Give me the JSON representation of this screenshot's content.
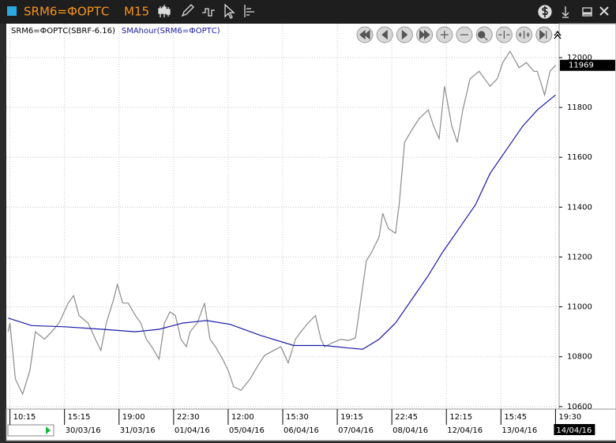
{
  "window": {
    "symbol": "SRM6=ФОРТС",
    "timeframe": "M15"
  },
  "chart_data": {
    "type": "line",
    "series": [
      {
        "name": "SRM6=ФОРТС(SBRF-6.16)",
        "color": "#8c8c8c",
        "x": [
          -1,
          0,
          3,
          7,
          11,
          14,
          19,
          23,
          27,
          32,
          35,
          38,
          43,
          47,
          50,
          53,
          57,
          59,
          62,
          65,
          69,
          72,
          75,
          78,
          82,
          85,
          88,
          91,
          94,
          97,
          99,
          103,
          107,
          110,
          113,
          117,
          120,
          123,
          127,
          132,
          136,
          140,
          145,
          149,
          153,
          157,
          160,
          164,
          168,
          171,
          173,
          177,
          182,
          186,
          190,
          193,
          196,
          199,
          203,
          205,
          208,
          212,
          214,
          217,
          221,
          225,
          230,
          233,
          236,
          239,
          243,
          246,
          249,
          253,
          258,
          261,
          264,
          268,
          271,
          275,
          280,
          284,
          288,
          290,
          294,
          297,
          300
        ],
        "values": [
          10900,
          10935,
          10710,
          10650,
          10745,
          10900,
          10870,
          10900,
          10935,
          11015,
          11045,
          10965,
          10935,
          10870,
          10825,
          10935,
          11030,
          11090,
          11015,
          11015,
          10965,
          10935,
          10870,
          10840,
          10790,
          10935,
          10980,
          10965,
          10870,
          10840,
          10900,
          10935,
          11015,
          10870,
          10840,
          10790,
          10745,
          10680,
          10665,
          10710,
          10760,
          10805,
          10825,
          10840,
          10775,
          10870,
          10900,
          10935,
          10965,
          10870,
          10840,
          10855,
          10870,
          10865,
          10875,
          11030,
          11185,
          11220,
          11280,
          11375,
          11315,
          11295,
          11410,
          11660,
          11710,
          11755,
          11790,
          11725,
          11675,
          11885,
          11725,
          11660,
          11790,
          11915,
          11945,
          11915,
          11885,
          11915,
          11980,
          12025,
          11960,
          11980,
          11945,
          11945,
          11850,
          11945,
          11969
        ]
      },
      {
        "name": "SMAhour(SRM6=ФОРТС)",
        "color": "#1a1aa8",
        "x": [
          -1,
          12,
          30,
          51,
          69,
          82,
          95,
          108,
          121,
          138,
          156,
          173,
          186,
          194,
          203,
          212,
          221,
          230,
          238,
          247,
          256,
          264,
          273,
          282,
          290,
          300
        ],
        "values": [
          10955,
          10925,
          10920,
          10910,
          10900,
          10910,
          10935,
          10945,
          10930,
          10885,
          10845,
          10845,
          10835,
          10830,
          10870,
          10935,
          11030,
          11125,
          11220,
          11315,
          11410,
          11535,
          11630,
          11725,
          11790,
          11850
        ]
      }
    ],
    "last_price": 11969,
    "xlim": [
      -2,
      302
    ],
    "ylim": [
      10590,
      12136
    ],
    "yticks": [
      10600,
      10800,
      11000,
      11200,
      11400,
      11600,
      11800,
      12000
    ],
    "xticks": [
      {
        "value": 0,
        "label": "10:15"
      },
      {
        "value": 30,
        "label": "15:15"
      },
      {
        "value": 60,
        "label": "19:00"
      },
      {
        "value": 90,
        "label": "22:30"
      },
      {
        "value": 120,
        "label": "12:00"
      },
      {
        "value": 150,
        "label": "15:30"
      },
      {
        "value": 180,
        "label": "19:15"
      },
      {
        "value": 210,
        "label": "22:45"
      },
      {
        "value": 240,
        "label": "12:15"
      },
      {
        "value": 270,
        "label": "15:45"
      },
      {
        "value": 300,
        "label": "19:30"
      }
    ],
    "xtick_dates": [
      {
        "value": 30,
        "label": "30/03/16"
      },
      {
        "value": 60,
        "label": "31/03/16"
      },
      {
        "value": 90,
        "label": "01/04/16"
      },
      {
        "value": 120,
        "label": "05/04/16"
      },
      {
        "value": 150,
        "label": "06/04/16"
      },
      {
        "value": 180,
        "label": "07/04/16"
      },
      {
        "value": 210,
        "label": "08/04/16"
      },
      {
        "value": 240,
        "label": "12/04/16"
      },
      {
        "value": 270,
        "label": "13/04/16"
      },
      {
        "value": 300,
        "label": "14/04/16"
      }
    ],
    "grid": true
  }
}
